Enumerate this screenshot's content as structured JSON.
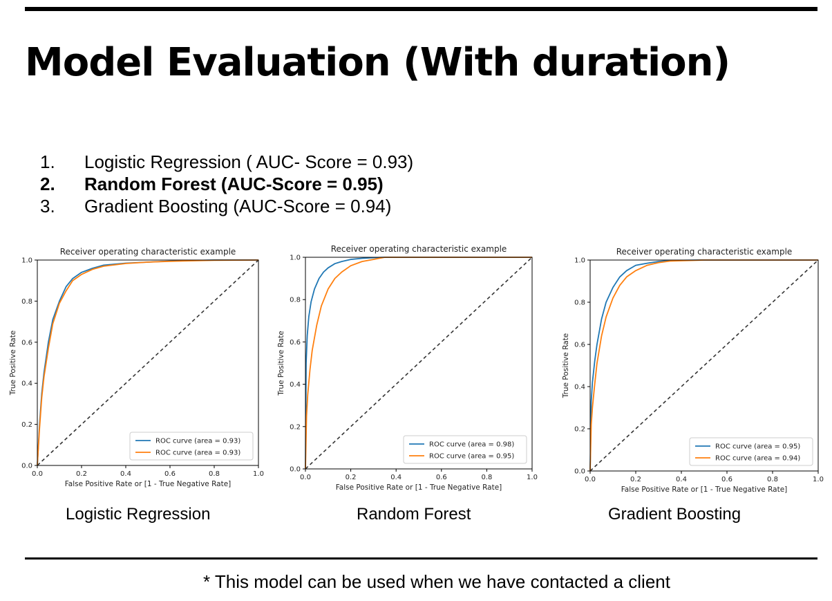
{
  "slide": {
    "title": "Model Evaluation (With duration)",
    "items": [
      {
        "num": "1.",
        "text": "Logistic Regression ( AUC- Score = 0.93)",
        "bold": false
      },
      {
        "num": "2.",
        "text": "Random Forest (AUC-Score = 0.95)",
        "bold": true
      },
      {
        "num": "3.",
        "text": "Gradient Boosting (AUC-Score = 0.94)",
        "bold": false
      }
    ],
    "captions": [
      "Logistic Regression",
      "Random Forest",
      "Gradient Boosting"
    ],
    "footnote": "* This model can be used when we have contacted a client"
  },
  "chart_data": [
    {
      "type": "line",
      "title": "Receiver operating characteristic example",
      "xlabel": "False Positive Rate or [1 - True Negative Rate]",
      "ylabel": "True Positive Rate",
      "xlim": [
        0,
        1
      ],
      "ylim": [
        0,
        1
      ],
      "xticks": [
        "0.0",
        "0.2",
        "0.4",
        "0.6",
        "0.8",
        "1.0"
      ],
      "yticks": [
        "0.0",
        "0.2",
        "0.4",
        "0.6",
        "0.8",
        "1.0"
      ],
      "legend": "lower-right",
      "grid": false,
      "series": [
        {
          "name": "ROC curve (area = 0.93)",
          "color": "#1f77b4",
          "x": [
            0,
            0.01,
            0.02,
            0.03,
            0.05,
            0.07,
            0.1,
            0.13,
            0.16,
            0.2,
            0.25,
            0.3,
            0.4,
            0.5,
            0.6,
            0.8,
            1.0
          ],
          "y": [
            0,
            0.2,
            0.35,
            0.45,
            0.6,
            0.71,
            0.8,
            0.87,
            0.91,
            0.94,
            0.96,
            0.975,
            0.985,
            0.99,
            0.995,
            1.0,
            1.0
          ]
        },
        {
          "name": "ROC curve (area = 0.93)",
          "color": "#ff7f0e",
          "x": [
            0,
            0.01,
            0.02,
            0.03,
            0.05,
            0.07,
            0.1,
            0.13,
            0.16,
            0.2,
            0.25,
            0.3,
            0.4,
            0.5,
            0.6,
            0.8,
            1.0
          ],
          "y": [
            0,
            0.18,
            0.33,
            0.43,
            0.57,
            0.69,
            0.79,
            0.85,
            0.9,
            0.93,
            0.955,
            0.97,
            0.983,
            0.99,
            0.994,
            0.999,
            1.0
          ]
        }
      ]
    },
    {
      "type": "line",
      "title": "Receiver operating characteristic example",
      "xlabel": "False Positive Rate or [1 - True Negative Rate]",
      "ylabel": "True Positive Rate",
      "xlim": [
        0,
        1
      ],
      "ylim": [
        0,
        1
      ],
      "xticks": [
        "0.0",
        "0.2",
        "0.4",
        "0.6",
        "0.8",
        "1.0"
      ],
      "yticks": [
        "0.0",
        "0.2",
        "0.4",
        "0.6",
        "0.8",
        "1.0"
      ],
      "legend": "lower-right",
      "grid": false,
      "series": [
        {
          "name": "ROC curve (area = 0.98)",
          "color": "#1f77b4",
          "x": [
            0,
            0.003,
            0.008,
            0.015,
            0.025,
            0.04,
            0.06,
            0.08,
            0.1,
            0.13,
            0.16,
            0.2,
            0.25,
            0.3,
            0.35,
            0.5,
            1.0
          ],
          "y": [
            0,
            0.5,
            0.63,
            0.72,
            0.79,
            0.85,
            0.9,
            0.93,
            0.95,
            0.97,
            0.98,
            0.99,
            0.995,
            0.998,
            1.0,
            1.0,
            1.0
          ]
        },
        {
          "name": "ROC curve (area = 0.95)",
          "color": "#ff7f0e",
          "x": [
            0,
            0.005,
            0.01,
            0.02,
            0.03,
            0.05,
            0.07,
            0.1,
            0.13,
            0.16,
            0.2,
            0.25,
            0.3,
            0.35,
            0.5,
            1.0
          ],
          "y": [
            0,
            0.25,
            0.35,
            0.47,
            0.56,
            0.68,
            0.77,
            0.85,
            0.9,
            0.93,
            0.96,
            0.98,
            0.99,
            1.0,
            1.0,
            1.0
          ]
        }
      ]
    },
    {
      "type": "line",
      "title": "Receiver operating characteristic example",
      "xlabel": "False Positive Rate or [1 - True Negative Rate]",
      "ylabel": "True Positive Rate",
      "xlim": [
        0,
        1
      ],
      "ylim": [
        0,
        1
      ],
      "xticks": [
        "0.0",
        "0.2",
        "0.4",
        "0.6",
        "0.8",
        "1.0"
      ],
      "yticks": [
        "0.0",
        "0.2",
        "0.4",
        "0.6",
        "0.8",
        "1.0"
      ],
      "legend": "lower-right",
      "grid": false,
      "series": [
        {
          "name": "ROC curve (area = 0.95)",
          "color": "#1f77b4",
          "x": [
            0,
            0.005,
            0.01,
            0.02,
            0.03,
            0.05,
            0.07,
            0.1,
            0.13,
            0.16,
            0.2,
            0.25,
            0.3,
            0.35,
            0.5,
            1.0
          ],
          "y": [
            0,
            0.33,
            0.42,
            0.52,
            0.6,
            0.72,
            0.8,
            0.87,
            0.92,
            0.95,
            0.975,
            0.985,
            0.993,
            0.998,
            1.0,
            1.0
          ]
        },
        {
          "name": "ROC curve (area = 0.94)",
          "color": "#ff7f0e",
          "x": [
            0,
            0.005,
            0.01,
            0.02,
            0.03,
            0.05,
            0.07,
            0.1,
            0.13,
            0.16,
            0.2,
            0.25,
            0.3,
            0.35,
            0.5,
            1.0
          ],
          "y": [
            0,
            0.22,
            0.3,
            0.41,
            0.51,
            0.64,
            0.73,
            0.82,
            0.88,
            0.92,
            0.95,
            0.975,
            0.988,
            0.995,
            1.0,
            1.0
          ]
        }
      ]
    }
  ]
}
